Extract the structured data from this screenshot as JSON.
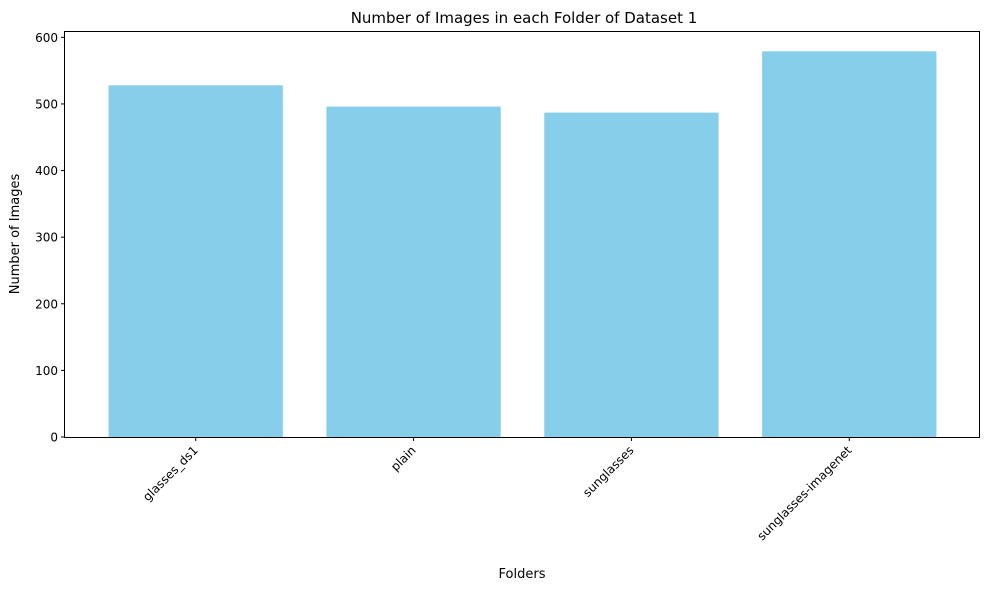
{
  "chart_data": {
    "type": "bar",
    "title": "Number of Images in each Folder of Dataset 1",
    "xlabel": "Folders",
    "ylabel": "Number of Images",
    "categories": [
      "glasses_ds1",
      "plain",
      "sunglasses",
      "sunglasses-imagenet"
    ],
    "values": [
      528,
      496,
      487,
      579
    ],
    "ylim": [
      0,
      608
    ],
    "yticks": [
      0,
      100,
      200,
      300,
      400,
      500,
      600
    ],
    "bar_color": "#87CEEB",
    "grid": false,
    "legend": "none"
  }
}
